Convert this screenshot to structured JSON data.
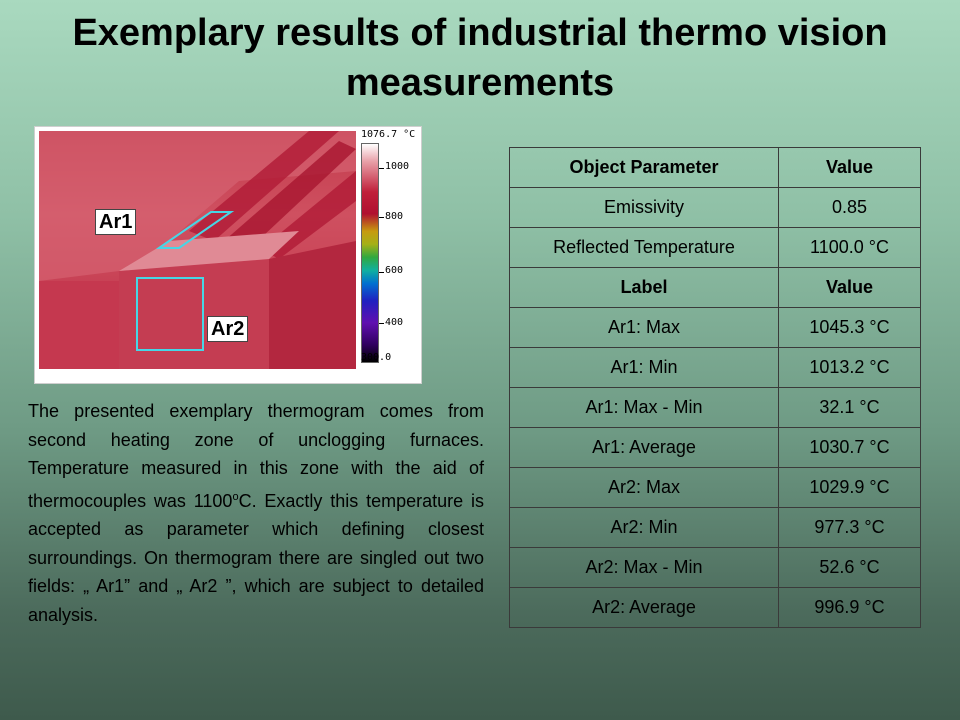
{
  "title": "Exemplary results of industrial thermo vision measurements",
  "thermogram": {
    "scale_max": "1076.7 °C",
    "scale_min": "300.0",
    "ticks": [
      "1000",
      "800",
      "600",
      "400"
    ],
    "areas": [
      "Ar1",
      "Ar2"
    ],
    "colors": {
      "area_outline": "#46d6e6"
    }
  },
  "description": {
    "before": "The presented exemplary thermogram comes from second heating zone of unclogging furnaces. Temperature measured in this zone with the aid of thermocouples was 1100",
    "sup": "o",
    "after": "C. Exactly this temperature is accepted as parameter which defining closest surroundings. On thermogram  there are singled out two fields: „ Ar1” and „ Ar2 ”, which are subject to detailed analysis."
  },
  "table": {
    "object_header": [
      "Object Parameter",
      "Value"
    ],
    "object_rows": [
      [
        "Emissivity",
        "0.85"
      ],
      [
        "Reflected Temperature",
        "1100.0 °C"
      ]
    ],
    "label_header": [
      "Label",
      "Value"
    ],
    "label_rows": [
      [
        "Ar1: Max",
        "1045.3 °C"
      ],
      [
        "Ar1: Min",
        "1013.2 °C"
      ],
      [
        "Ar1: Max - Min",
        "32.1 °C"
      ],
      [
        "Ar1: Average",
        "1030.7 °C"
      ],
      [
        "Ar2: Max",
        "1029.9 °C"
      ],
      [
        "Ar2: Min",
        "977.3 °C"
      ],
      [
        "Ar2: Max - Min",
        "52.6 °C"
      ],
      [
        "Ar2: Average",
        "996.9 °C"
      ]
    ]
  }
}
